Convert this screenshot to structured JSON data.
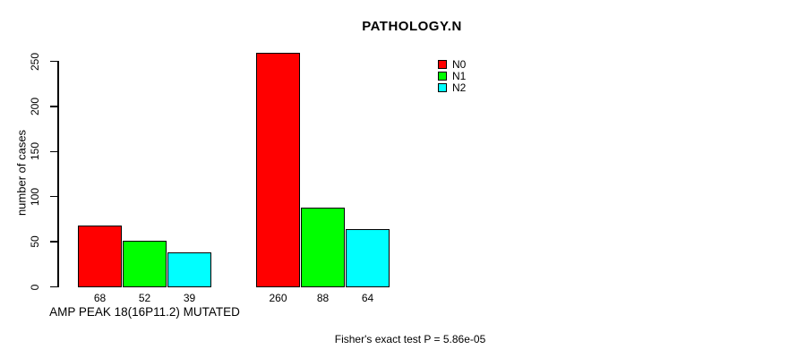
{
  "title": "PATHOLOGY.N",
  "footnote": "Fisher's exact test P = 5.86e-05",
  "chart_data": {
    "type": "bar",
    "title": "PATHOLOGY.N",
    "ylabel": "number of cases",
    "ylim": [
      0,
      250
    ],
    "yticks": [
      0,
      50,
      100,
      150,
      200,
      250
    ],
    "grid": false,
    "legend_position": "top-right",
    "categories": [
      "AMP PEAK 18(16P11.2) MUTATED",
      ""
    ],
    "series": [
      {
        "name": "N0",
        "color": "#ff0000",
        "values": [
          68,
          260
        ]
      },
      {
        "name": "N1",
        "color": "#00ff00",
        "values": [
          52,
          88
        ]
      },
      {
        "name": "N2",
        "color": "#00ffff",
        "values": [
          39,
          64
        ]
      }
    ],
    "bar_value_labels": [
      [
        68,
        52,
        39
      ],
      [
        260,
        88,
        64
      ]
    ]
  }
}
